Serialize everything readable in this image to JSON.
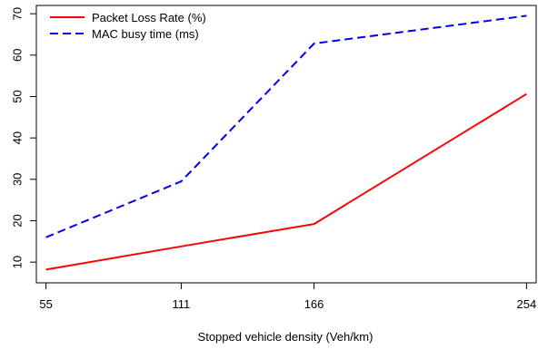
{
  "chart_data": {
    "type": "line",
    "title": "",
    "xlabel": "Stopped vehicle density (Veh/km)",
    "ylabel": "",
    "x": [
      55,
      111,
      166,
      254
    ],
    "x_tick_labels": [
      "55",
      "111",
      "166",
      "254"
    ],
    "xlim": [
      51,
      258
    ],
    "ylim": [
      5,
      72
    ],
    "y_ticks": [
      10,
      20,
      30,
      40,
      50,
      60,
      70
    ],
    "y_tick_labels": [
      "10",
      "20",
      "30",
      "40",
      "50",
      "60",
      "70"
    ],
    "grid": false,
    "legend_position": "top-left",
    "series": [
      {
        "name": "Packet Loss Rate (%)",
        "values": [
          8.2,
          13.8,
          19.2,
          50.6
        ],
        "color": "#ff0000",
        "line_style": "solid"
      },
      {
        "name": "MAC busy time (ms)",
        "values": [
          16.0,
          29.5,
          62.8,
          69.5
        ],
        "color": "#0000ee",
        "line_style": "dashed"
      }
    ]
  }
}
